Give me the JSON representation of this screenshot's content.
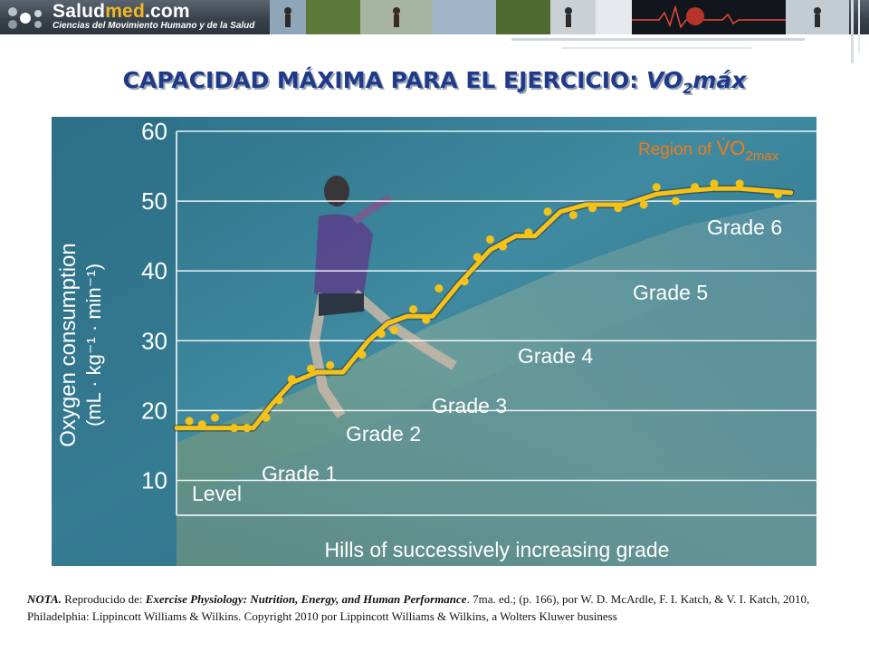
{
  "header": {
    "logo_brand_prefix": "Salud",
    "logo_brand_accent": "med",
    "logo_brand_suffix": ".com",
    "logo_tagline": "Ciencias del Movimiento Humano y de la Salud",
    "colors": {
      "banner": "#3a424c",
      "accent": "#f2b820"
    }
  },
  "slide": {
    "title_main": "CAPACIDAD MÁXIMA PARA EL EJERCICIO: ",
    "title_symbol": "VO",
    "title_sub": "2",
    "title_suffix": "máx",
    "title_color": "#1f3a8a"
  },
  "chart_data": {
    "type": "line",
    "ylabel_line1": "Oxygen consumption",
    "ylabel_line2": "(mL · kg⁻¹ · min⁻¹)",
    "xlabel": "Hills of successively increasing grade",
    "ylim": [
      5,
      60
    ],
    "yticks": [
      10,
      20,
      30,
      40,
      50,
      60
    ],
    "grid": true,
    "x_range": [
      0,
      100
    ],
    "series": [
      {
        "kind": "curve",
        "color": "#f5c218",
        "x": [
          0,
          12,
          15,
          18,
          22,
          26,
          30,
          33,
          36,
          40,
          44,
          49,
          53,
          56,
          60,
          64,
          67,
          70,
          75,
          80,
          84,
          88,
          92,
          96
        ],
        "y": [
          17.5,
          17.5,
          21,
          24,
          25.5,
          25.5,
          30,
          32.5,
          33.5,
          33.5,
          38,
          43,
          45,
          45,
          48.5,
          49.5,
          49.5,
          49.5,
          51,
          51.5,
          51.8,
          51.8,
          51.5,
          51.2
        ]
      },
      {
        "kind": "points",
        "color": "#f5c218",
        "x": [
          2,
          4,
          6,
          9,
          11,
          14,
          16,
          18,
          21,
          24,
          29,
          32,
          34,
          37,
          39,
          41,
          45,
          47,
          49,
          51,
          55,
          58,
          62,
          65,
          69,
          73,
          75,
          78,
          81,
          84,
          88,
          94
        ],
        "y": [
          18.5,
          18,
          19,
          17.5,
          17.5,
          19,
          21.5,
          24.5,
          26,
          26.5,
          28,
          31,
          31.5,
          34.5,
          33,
          37.5,
          38.5,
          42,
          44.5,
          43.5,
          45.5,
          48.5,
          48,
          49,
          49,
          49.5,
          52,
          50,
          52,
          52.5,
          52.5,
          51
        ]
      }
    ],
    "region_label_prefix": "Region of ",
    "region_label_symbol": "V̇O",
    "region_label_sub": "2max",
    "region_label_color": "#f07a1a",
    "grade_labels": [
      "Level",
      "Grade 1",
      "Grade 2",
      "Grade 3",
      "Grade 4",
      "Grade 5",
      "Grade 6"
    ]
  },
  "note": {
    "lead": "NOTA.",
    "text1": " Reproducido de: ",
    "book": "Exercise Physiology: Nutrition, Energy, and Human Performance",
    "text2": ". 7ma. ed.; (p. 166), por W. D. McArdle, F. I. Katch, & V. I. Katch, 2010, Philadelphia: Lippincott Williams  & Wilkins. Copyright 2010 por Lippincott Williams  & Wilkins, a Wolters Kluwer business"
  }
}
